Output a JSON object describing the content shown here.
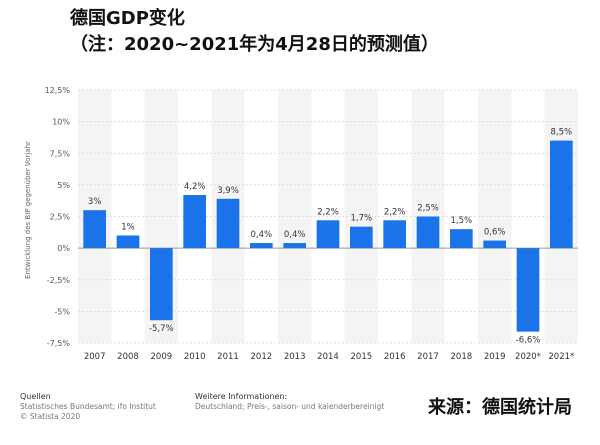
{
  "title": {
    "line1": "德国GDP变化",
    "line2": "（注：2020~2021年为4月28日的预测值）"
  },
  "chart_data": {
    "type": "bar",
    "categories": [
      "2007",
      "2008",
      "2009",
      "2010",
      "2011",
      "2012",
      "2013",
      "2014",
      "2015",
      "2016",
      "2017",
      "2018",
      "2019",
      "2020*",
      "2021*"
    ],
    "values": [
      3,
      1,
      -5.7,
      4.2,
      3.9,
      0.4,
      0.4,
      2.2,
      1.7,
      2.2,
      2.5,
      1.5,
      0.6,
      -6.6,
      8.5
    ],
    "data_labels": [
      "3%",
      "1%",
      "-5,7%",
      "4,2%",
      "3,9%",
      "0,4%",
      "0,4%",
      "2,2%",
      "1,7%",
      "2,2%",
      "2,5%",
      "1,5%",
      "0,6%",
      "-6,6%",
      "8,5%"
    ],
    "ylabel": "Entwicklung des BIP gegenüber Vorjahr",
    "ylim": [
      -7.5,
      12.5
    ],
    "yticks": [
      12.5,
      10,
      7.5,
      5,
      2.5,
      0,
      -2.5,
      -5,
      -7.5
    ],
    "ytick_labels": [
      "12,5%",
      "10%",
      "7,5%",
      "5%",
      "2,5%",
      "0%",
      "-2,5%",
      "-5%",
      "-7,5%"
    ],
    "bar_color": "#1a73e8",
    "grid": true
  },
  "footer": {
    "sources_heading": "Quellen",
    "sources_line1": "Statistisches Bundesamt; ifo Institut",
    "sources_line2": "© Statista 2020",
    "info_heading": "Weitere Informationen:",
    "info_line1": "Deutschland; Preis-, saison- und kalenderbereinigt"
  },
  "source_label": "来源：德国统计局"
}
